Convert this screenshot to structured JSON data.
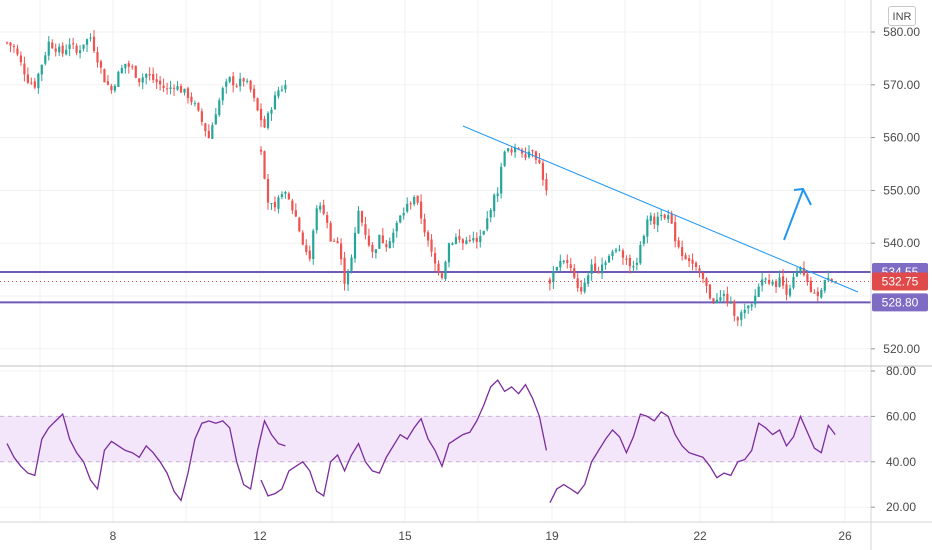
{
  "currency": "INR",
  "chart_data": [
    {
      "type": "candlestick",
      "title": "",
      "y_ticks": [
        "580.00",
        "570.00",
        "560.00",
        "550.00",
        "540.00",
        "520.00"
      ],
      "ylim": [
        517,
        582
      ],
      "x_ticks": [
        "8",
        "12",
        "15",
        "19",
        "22",
        "26"
      ],
      "price_tags": [
        {
          "label": "534.55",
          "value": 534.55,
          "color": "#7e6cc4"
        },
        {
          "label": "532.75",
          "value": 532.75,
          "color": "#e04a4a"
        },
        {
          "label": "528.80",
          "value": 528.8,
          "color": "#7e6cc4"
        }
      ],
      "horizontal_levels": [
        534.55,
        528.8
      ],
      "current_price": 532.75,
      "trendline": [
        {
          "bar": 132,
          "price": 562.5
        },
        {
          "bar": 240,
          "price": 532.0
        }
      ],
      "segments": [
        {
          "start_bar": 0,
          "path": [
            578.0,
            577.0,
            574.0,
            571.0,
            570.0,
            574.0,
            578.0,
            577.0,
            576.0,
            578.0,
            576.0,
            578.0,
            579.0,
            575.0,
            571.0,
            569.0,
            572.0,
            574.0,
            573.0,
            571.0,
            572.0,
            571.0,
            570.0,
            569.0,
            570.0,
            569.0,
            568.0,
            566.0,
            563.0,
            560.0,
            565.0,
            569.0,
            571.0,
            570.0,
            571.0,
            569.0,
            565.0,
            562.0,
            566.0,
            569.0,
            570.0
          ]
        },
        {
          "start_bar": 73,
          "path": [
            558.0,
            548.0,
            546.0,
            550.0,
            548.0,
            545.0,
            540.0,
            537.0,
            547.0,
            546.0,
            541.0,
            540.0,
            533.0,
            537.0,
            546.0,
            542.0,
            538.0,
            541.0,
            540.0,
            542.0,
            545.0,
            547.0,
            549.0,
            545.0,
            540.0,
            536.0,
            534.0,
            540.0,
            541.0,
            540.0,
            541.0,
            540.0,
            542.0,
            547.0,
            550.0,
            558.0,
            557.0,
            558.0,
            557.0,
            558.0,
            555.0,
            550.0
          ]
        },
        {
          "start_bar": 156,
          "path": [
            533.0,
            536.0,
            537.0,
            535.0,
            531.0,
            532.0,
            536.0,
            535.0,
            537.0,
            538.0,
            539.0,
            537.0,
            535.0,
            539.0,
            545.0,
            544.0,
            546.0,
            545.0,
            541.0,
            538.0,
            537.0,
            535.0,
            533.0,
            530.0,
            529.0,
            530.0,
            528.0,
            526.0,
            527.0,
            528.0,
            532.0,
            534.0,
            532.0,
            533.0,
            531.0,
            533.0,
            535.0,
            532.0,
            530.0,
            531.0,
            534.0,
            532.75
          ]
        }
      ],
      "rsi": {
        "y_ticks": [
          "80.00",
          "60.00",
          "40.00",
          "20.00"
        ],
        "ylim": [
          15,
          82
        ],
        "band": [
          40,
          60
        ],
        "color": "#7b2c9c",
        "band_color": "#f3e6fb",
        "segments": [
          {
            "start_bar": 0,
            "path": [
              48,
              42,
              38,
              35,
              34,
              50,
              55,
              58,
              61,
              50,
              44,
              40,
              32,
              28,
              45,
              49,
              47,
              45,
              44,
              42,
              47,
              44,
              40,
              35,
              27,
              23,
              35,
              50,
              57,
              58,
              57,
              58,
              55,
              40,
              30,
              28,
              45,
              58,
              52,
              48,
              47
            ]
          },
          {
            "start_bar": 73,
            "path": [
              32,
              25,
              26,
              28,
              36,
              38,
              40,
              36,
              27,
              25,
              40,
              43,
              36,
              43,
              48,
              40,
              36,
              35,
              42,
              47,
              52,
              50,
              55,
              59,
              50,
              45,
              38,
              48,
              50,
              52,
              53,
              58,
              65,
              73,
              76,
              71,
              73,
              70,
              74,
              68,
              60,
              45
            ]
          },
          {
            "start_bar": 156,
            "path": [
              22,
              28,
              30,
              28,
              26,
              30,
              40,
              45,
              50,
              54,
              51,
              44,
              51,
              61,
              60,
              58,
              62,
              60,
              52,
              47,
              44,
              43,
              42,
              38,
              33,
              35,
              34,
              40,
              41,
              45,
              57,
              55,
              52,
              54,
              47,
              51,
              60,
              53,
              46,
              44,
              56,
              52
            ]
          }
        ]
      },
      "annotations": [
        {
          "type": "arrow",
          "direction": "up-right",
          "color": "#2196f3"
        }
      ]
    }
  ]
}
